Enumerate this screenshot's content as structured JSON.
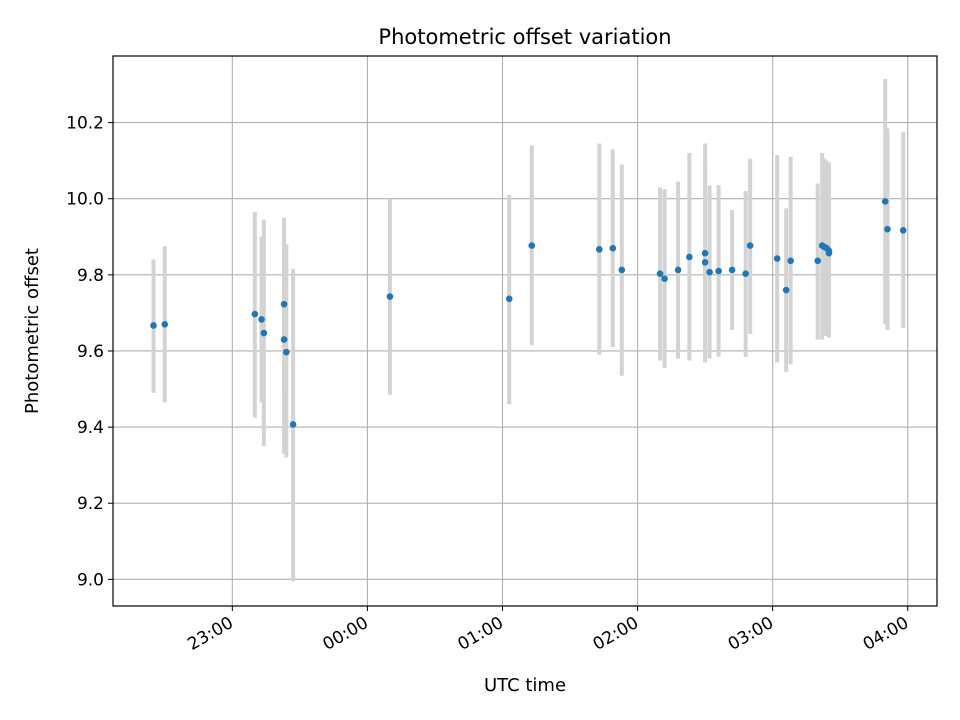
{
  "chart_data": {
    "type": "scatter",
    "title": "Photometric offset variation",
    "xlabel": "UTC time",
    "ylabel": "Photometric offset",
    "x_unit": "UTC",
    "xlim": [
      "22:07",
      "04:13"
    ],
    "ylim": [
      8.93,
      10.375
    ],
    "grid": true,
    "colors": {
      "point": "#1f77b4",
      "errorbar": "#d3d3d3",
      "grid": "#b0b0b0"
    },
    "x_ticks": [
      {
        "value": "23:00",
        "label": "23:00"
      },
      {
        "value": "00:00",
        "label": "00:00"
      },
      {
        "value": "01:00",
        "label": "01:00"
      },
      {
        "value": "02:00",
        "label": "02:00"
      },
      {
        "value": "03:00",
        "label": "03:00"
      },
      {
        "value": "04:00",
        "label": "04:00"
      }
    ],
    "y_ticks": [
      {
        "value": 9.0,
        "label": "9.0"
      },
      {
        "value": 9.2,
        "label": "9.2"
      },
      {
        "value": 9.4,
        "label": "9.4"
      },
      {
        "value": 9.6,
        "label": "9.6"
      },
      {
        "value": 9.8,
        "label": "9.8"
      },
      {
        "value": 10.0,
        "label": "10.0"
      },
      {
        "value": 10.2,
        "label": "10.2"
      }
    ],
    "points": [
      {
        "x": "22:25",
        "y": 9.667,
        "low": 9.49,
        "high": 9.84
      },
      {
        "x": "22:30",
        "y": 9.67,
        "low": 9.465,
        "high": 9.875
      },
      {
        "x": "23:10",
        "y": 9.697,
        "low": 9.425,
        "high": 9.965
      },
      {
        "x": "23:13",
        "y": 9.683,
        "low": 9.465,
        "high": 9.9
      },
      {
        "x": "23:14",
        "y": 9.647,
        "low": 9.35,
        "high": 9.945
      },
      {
        "x": "23:23",
        "y": 9.723,
        "low": 9.495,
        "high": 9.95
      },
      {
        "x": "23:23",
        "y": 9.63,
        "low": 9.33,
        "high": 9.93
      },
      {
        "x": "23:24",
        "y": 9.597,
        "low": 9.32,
        "high": 9.88
      },
      {
        "x": "23:27",
        "y": 9.407,
        "low": 8.995,
        "high": 9.815
      },
      {
        "x": "00:10",
        "y": 9.743,
        "low": 9.485,
        "high": 10.0
      },
      {
        "x": "01:03",
        "y": 9.737,
        "low": 9.46,
        "high": 10.01
      },
      {
        "x": "01:13",
        "y": 9.877,
        "low": 9.615,
        "high": 10.14
      },
      {
        "x": "01:43",
        "y": 9.867,
        "low": 9.59,
        "high": 10.145
      },
      {
        "x": "01:49",
        "y": 9.87,
        "low": 9.61,
        "high": 10.13
      },
      {
        "x": "01:53",
        "y": 9.813,
        "low": 9.535,
        "high": 10.09
      },
      {
        "x": "02:10",
        "y": 9.803,
        "low": 9.575,
        "high": 10.03
      },
      {
        "x": "02:12",
        "y": 9.79,
        "low": 9.555,
        "high": 10.025
      },
      {
        "x": "02:18",
        "y": 9.813,
        "low": 9.58,
        "high": 10.045
      },
      {
        "x": "02:23",
        "y": 9.847,
        "low": 9.575,
        "high": 10.12
      },
      {
        "x": "02:30",
        "y": 9.833,
        "low": 9.575,
        "high": 10.09
      },
      {
        "x": "02:30",
        "y": 9.857,
        "low": 9.57,
        "high": 10.145
      },
      {
        "x": "02:32",
        "y": 9.807,
        "low": 9.58,
        "high": 10.035
      },
      {
        "x": "02:36",
        "y": 9.81,
        "low": 9.585,
        "high": 10.035
      },
      {
        "x": "02:42",
        "y": 9.813,
        "low": 9.655,
        "high": 9.97
      },
      {
        "x": "02:48",
        "y": 9.803,
        "low": 9.585,
        "high": 10.02
      },
      {
        "x": "02:50",
        "y": 9.877,
        "low": 9.645,
        "high": 10.105
      },
      {
        "x": "03:02",
        "y": 9.843,
        "low": 9.57,
        "high": 10.115
      },
      {
        "x": "03:06",
        "y": 9.76,
        "low": 9.545,
        "high": 9.975
      },
      {
        "x": "03:08",
        "y": 9.837,
        "low": 9.565,
        "high": 10.11
      },
      {
        "x": "03:20",
        "y": 9.837,
        "low": 9.63,
        "high": 10.04
      },
      {
        "x": "03:22",
        "y": 9.877,
        "low": 9.63,
        "high": 10.12
      },
      {
        "x": "03:23",
        "y": 9.873,
        "low": 9.64,
        "high": 10.105
      },
      {
        "x": "03:24",
        "y": 9.87,
        "low": 9.64,
        "high": 10.1
      },
      {
        "x": "03:25",
        "y": 9.857,
        "low": 9.635,
        "high": 10.08
      },
      {
        "x": "03:25",
        "y": 9.863,
        "low": 9.635,
        "high": 10.095
      },
      {
        "x": "03:50",
        "y": 9.993,
        "low": 9.67,
        "high": 10.315
      },
      {
        "x": "03:51",
        "y": 9.92,
        "low": 9.655,
        "high": 10.185
      },
      {
        "x": "03:58",
        "y": 9.917,
        "low": 9.66,
        "high": 10.175
      }
    ]
  }
}
